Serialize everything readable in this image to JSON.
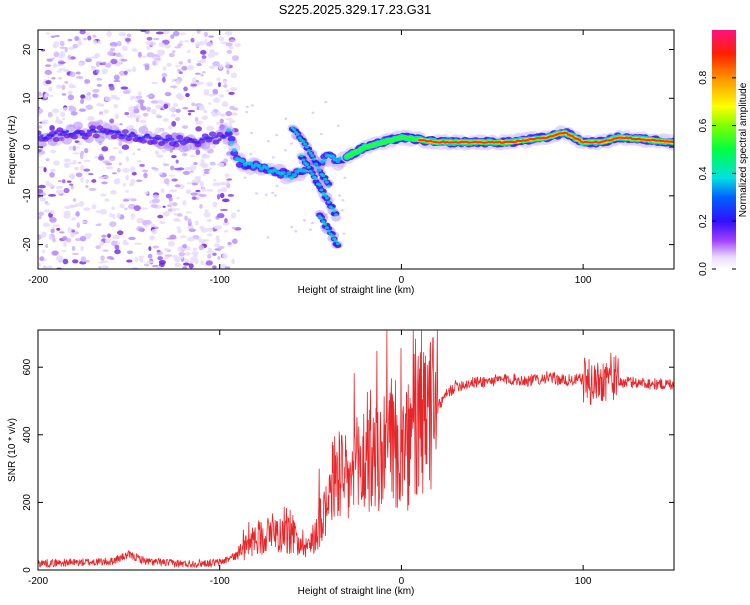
{
  "page_title": "S225.2025.329.17.23.G31",
  "colors": {
    "axis": "#000000",
    "snr_line": "#e8262a",
    "scatter": "#8a2be2"
  },
  "chart_data": [
    {
      "type": "heatmap",
      "title": "S225.2025.329.17.23.G31",
      "xlabel": "Height of straight line (km)",
      "ylabel": "Frequency (Hz)",
      "xlim": [
        -200,
        150
      ],
      "ylim": [
        -25,
        24
      ],
      "x_ticks": [
        -200,
        -100,
        0,
        100
      ],
      "x_tick_labels": [
        "-200",
        "-100",
        "0",
        "100"
      ],
      "y_ticks": [
        20,
        10,
        0,
        -10,
        -20
      ],
      "y_tick_labels": [
        "20",
        "10",
        "0",
        "-10",
        "-20"
      ],
      "ridge": {
        "x": [
          -200,
          -180,
          -160,
          -140,
          -120,
          -100,
          -95,
          -90,
          -80,
          -70,
          -60,
          -50,
          -40,
          -35,
          -30,
          -20,
          -10,
          0,
          20,
          40,
          60,
          80,
          90,
          100,
          110,
          120,
          150
        ],
        "y": [
          2,
          3,
          3,
          2,
          1,
          2,
          3,
          -3,
          -4,
          -5,
          -6,
          -4,
          -2,
          -3,
          -2,
          0,
          1,
          2,
          1,
          1,
          1,
          2,
          3,
          1,
          1,
          2,
          1
        ]
      },
      "branches": [
        {
          "x": [
            -60,
            -52,
            -46,
            -40
          ],
          "y": [
            4,
            0,
            -4,
            -8
          ]
        },
        {
          "x": [
            -55,
            -48,
            -42,
            -36
          ],
          "y": [
            -2,
            -6,
            -10,
            -14
          ]
        },
        {
          "x": [
            -45,
            -40,
            -35
          ],
          "y": [
            -14,
            -17,
            -20
          ]
        }
      ],
      "colorbar": {
        "label": "Normalized spectral amplitude",
        "range": [
          0,
          1
        ],
        "ticks": [
          0.0,
          0.2,
          0.4,
          0.6,
          0.8
        ],
        "tick_labels": [
          "0.0",
          "0.2",
          "0.4",
          "0.6",
          "0.8"
        ]
      }
    },
    {
      "type": "line",
      "xlabel": "Height of straight line (km)",
      "ylabel": "SNR (10 * v/v)",
      "xlim": [
        -200,
        150
      ],
      "ylim": [
        0,
        710
      ],
      "x_ticks": [
        -200,
        -100,
        0,
        100
      ],
      "x_tick_labels": [
        "-200",
        "-100",
        "0",
        "100"
      ],
      "y_ticks": [
        0,
        200,
        400,
        600
      ],
      "y_tick_labels": [
        "0",
        "200",
        "400",
        "600"
      ],
      "series": [
        {
          "name": "SNR",
          "x": [
            -200,
            -180,
            -160,
            -150,
            -140,
            -120,
            -100,
            -90,
            -80,
            -70,
            -60,
            -50,
            -40,
            -35,
            -30,
            -25,
            -20,
            -15,
            -10,
            -5,
            0,
            5,
            10,
            15,
            20,
            25,
            30,
            40,
            50,
            60,
            70,
            80,
            90,
            100,
            105,
            110,
            115,
            120,
            130,
            140,
            150
          ],
          "values": [
            20,
            22,
            25,
            45,
            25,
            18,
            22,
            45,
            95,
            110,
            100,
            70,
            220,
            300,
            250,
            290,
            330,
            300,
            350,
            370,
            330,
            370,
            420,
            450,
            480,
            520,
            545,
            555,
            560,
            565,
            560,
            570,
            560,
            565,
            550,
            560,
            580,
            555,
            555,
            550,
            550
          ]
        }
      ]
    }
  ]
}
